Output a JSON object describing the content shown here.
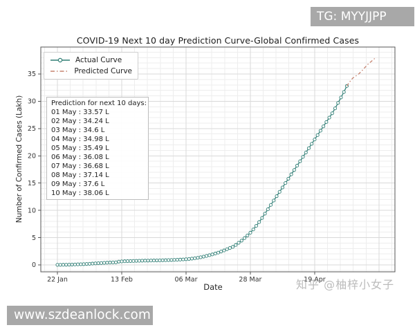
{
  "banners": {
    "top_right": "TG: MYYJJPP",
    "bottom_left": "www.szdeanlock.com"
  },
  "watermark": "知乎 @柚梓小女子",
  "colors": {
    "actual": "#2e7d74",
    "predicted": "#c5836f",
    "grid_major": "#d9d9d9",
    "grid_minor": "#ededed",
    "spine": "#555555",
    "tick_text": "#333333",
    "banner_bg": "#a8a8a8"
  },
  "chart_data": {
    "type": "line",
    "title": "COVID-19 Next 10 day Prediction Curve-Global Confirmed Cases",
    "xlabel": "Date",
    "ylabel": "Number of Confirmed Cases (Lakh)",
    "grid": true,
    "legend_position": "upper left",
    "x_tick_labels": [
      "22 Jan",
      "13 Feb",
      "06 Mar",
      "28 Mar",
      "19 Apr"
    ],
    "x_tick_days": [
      0,
      22,
      44,
      66,
      88
    ],
    "x_gridline_days": [
      0,
      22,
      44,
      66,
      88,
      110
    ],
    "y_ticks": [
      0,
      5,
      10,
      15,
      20,
      25,
      30,
      35
    ],
    "ylim": [
      -1.3,
      39.9
    ],
    "legend": [
      {
        "label": "Actual Curve",
        "style": "solid-circle-marker"
      },
      {
        "label": "Predicted Curve",
        "style": "dash-dot"
      }
    ],
    "series": [
      {
        "name": "Actual Curve",
        "x_start": "22 Jan",
        "x_unit": "days since 22 Jan",
        "values": [
          0.01,
          0.01,
          0.02,
          0.03,
          0.04,
          0.06,
          0.08,
          0.1,
          0.12,
          0.14,
          0.17,
          0.2,
          0.24,
          0.28,
          0.31,
          0.34,
          0.37,
          0.4,
          0.43,
          0.45,
          0.47,
          0.6,
          0.64,
          0.67,
          0.69,
          0.71,
          0.72,
          0.74,
          0.75,
          0.77,
          0.78,
          0.79,
          0.8,
          0.81,
          0.82,
          0.83,
          0.85,
          0.86,
          0.88,
          0.9,
          0.92,
          0.94,
          0.97,
          1.0,
          1.04,
          1.09,
          1.15,
          1.22,
          1.3,
          1.4,
          1.52,
          1.64,
          1.78,
          1.92,
          2.08,
          2.25,
          2.45,
          2.65,
          2.87,
          3.1,
          3.3,
          3.65,
          4.05,
          4.45,
          4.9,
          5.4,
          5.9,
          6.5,
          7.15,
          7.85,
          8.6,
          9.4,
          10.2,
          11.0,
          11.8,
          12.6,
          13.4,
          14.2,
          15.0,
          15.8,
          16.6,
          17.4,
          18.2,
          19.0,
          19.8,
          20.6,
          21.4,
          22.2,
          23.0,
          23.8,
          24.6,
          25.4,
          26.2,
          27.0,
          27.8,
          28.7,
          29.7,
          30.7,
          31.7,
          32.8
        ]
      },
      {
        "name": "Predicted Curve",
        "dates": [
          "01 May",
          "02 May",
          "03 May",
          "04 May",
          "05 May",
          "06 May",
          "07 May",
          "08 May",
          "09 May",
          "10 May"
        ],
        "values": [
          33.57,
          34.24,
          34.6,
          34.98,
          35.49,
          36.08,
          36.68,
          37.14,
          37.6,
          38.06
        ]
      }
    ],
    "annotation": {
      "header": "Prediction for next 10 days:",
      "lines": [
        "01 May : 33.57 L",
        "02 May : 34.24 L",
        "03 May : 34.6 L",
        "04 May : 34.98 L",
        "05 May : 35.49 L",
        "06 May : 36.08 L",
        "07 May : 36.68 L",
        "08 May : 37.14 L",
        "09 May : 37.6 L",
        "10 May : 38.06 L"
      ]
    }
  }
}
